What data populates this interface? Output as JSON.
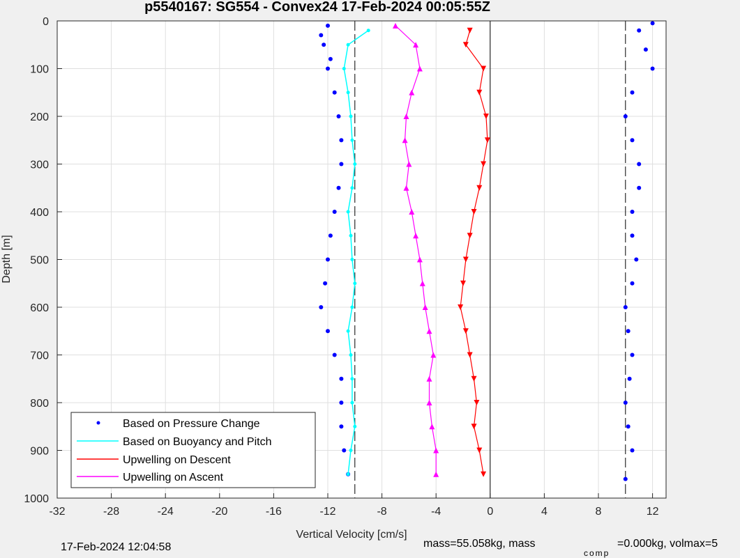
{
  "chart_data": {
    "type": "scatter",
    "title": "p5540167: SG554 - Convex24 17-Feb-2024 00:05:55Z",
    "xlabel": "Vertical Velocity [cm/s]",
    "ylabel": "Depth [m]",
    "xlim": [
      -32,
      13
    ],
    "ylim": [
      1000,
      0
    ],
    "xticks": [
      "-32",
      "-28",
      "-24",
      "-20",
      "-16",
      "-12",
      "-8",
      "-4",
      "0",
      "4",
      "8",
      "12"
    ],
    "xtick_values": [
      -32,
      -28,
      -24,
      -20,
      -16,
      -12,
      -8,
      -4,
      0,
      4,
      8,
      12
    ],
    "yticks": [
      "0",
      "100",
      "200",
      "300",
      "400",
      "500",
      "600",
      "700",
      "800",
      "900",
      "1000"
    ],
    "ytick_values": [
      0,
      100,
      200,
      300,
      400,
      500,
      600,
      700,
      800,
      900,
      1000
    ],
    "grid": true,
    "legend_position": "bottom-left",
    "reference_lines": [
      -10,
      0,
      10
    ],
    "series": [
      {
        "name": "Based on Pressure Change",
        "color": "#0000ff",
        "style": "dots",
        "descent": {
          "depth": [
            10,
            30,
            50,
            80,
            100,
            150,
            200,
            250,
            300,
            350,
            400,
            450,
            500,
            550,
            600,
            650,
            700,
            750,
            800,
            850,
            900,
            950
          ],
          "velocity": [
            -12,
            -12.5,
            -12.3,
            -11.8,
            -12,
            -11.5,
            -11.2,
            -11,
            -11,
            -11.2,
            -11.5,
            -11.8,
            -12,
            -12.2,
            -12.5,
            -12,
            -11.5,
            -11,
            -11,
            -11,
            -10.8,
            -10.5
          ]
        },
        "ascent": {
          "depth": [
            960,
            900,
            850,
            800,
            750,
            700,
            650,
            600,
            550,
            500,
            450,
            400,
            350,
            300,
            250,
            200,
            150,
            100,
            60,
            20,
            5
          ],
          "velocity": [
            10,
            10.5,
            10.2,
            10,
            10.3,
            10.5,
            10.2,
            10,
            10.5,
            10.8,
            10.5,
            10.5,
            11,
            11,
            10.5,
            10,
            10.5,
            12,
            11.5,
            11,
            12
          ]
        }
      },
      {
        "name": "Based on Buoyancy and Pitch",
        "color": "#00ffff",
        "style": "line",
        "descent": {
          "depth": [
            20,
            50,
            100,
            150,
            200,
            250,
            300,
            350,
            400,
            450,
            500,
            550,
            600,
            650,
            700,
            750,
            800,
            850,
            900,
            950
          ],
          "velocity": [
            -9,
            -10.5,
            -10.8,
            -10.5,
            -10.3,
            -10.2,
            -10,
            -10.2,
            -10.5,
            -10.3,
            -10.2,
            -10,
            -10.2,
            -10.5,
            -10.3,
            -10.2,
            -10.2,
            -10,
            -10.3,
            -10.5
          ]
        }
      },
      {
        "name": "Upwelling on Descent",
        "color": "#ff0000",
        "style": "line-triangles-down",
        "depth": [
          20,
          50,
          100,
          150,
          200,
          250,
          300,
          350,
          400,
          450,
          500,
          550,
          600,
          650,
          700,
          750,
          800,
          850,
          900,
          950
        ],
        "velocity": [
          -1.5,
          -1.8,
          -0.5,
          -0.8,
          -0.3,
          -0.2,
          -0.5,
          -0.8,
          -1.2,
          -1.5,
          -1.8,
          -2,
          -2.2,
          -1.8,
          -1.5,
          -1.2,
          -1,
          -1.2,
          -0.8,
          -0.5
        ]
      },
      {
        "name": "Upwelling on Ascent",
        "color": "#ff00ff",
        "style": "line-triangles-up",
        "depth": [
          10,
          50,
          100,
          150,
          200,
          250,
          300,
          350,
          400,
          450,
          500,
          550,
          600,
          650,
          700,
          750,
          800,
          850,
          900,
          950
        ],
        "velocity": [
          -7,
          -5.5,
          -5.2,
          -5.8,
          -6.2,
          -6.3,
          -6.0,
          -6.2,
          -5.8,
          -5.5,
          -5.2,
          -5,
          -4.8,
          -4.5,
          -4.2,
          -4.5,
          -4.5,
          -4.3,
          -4,
          -4
        ]
      }
    ],
    "legend": [
      "Based on Pressure Change",
      "Based on Buoyancy and Pitch",
      "Upwelling on Descent",
      "Upwelling on Ascent"
    ]
  },
  "footer": {
    "timestamp": "17-Feb-2024 12:04:58",
    "mass_text": "mass=55.058kg, mass",
    "comp_sub": "comp",
    "comp_text": "=0.000kg, volmax=5"
  }
}
